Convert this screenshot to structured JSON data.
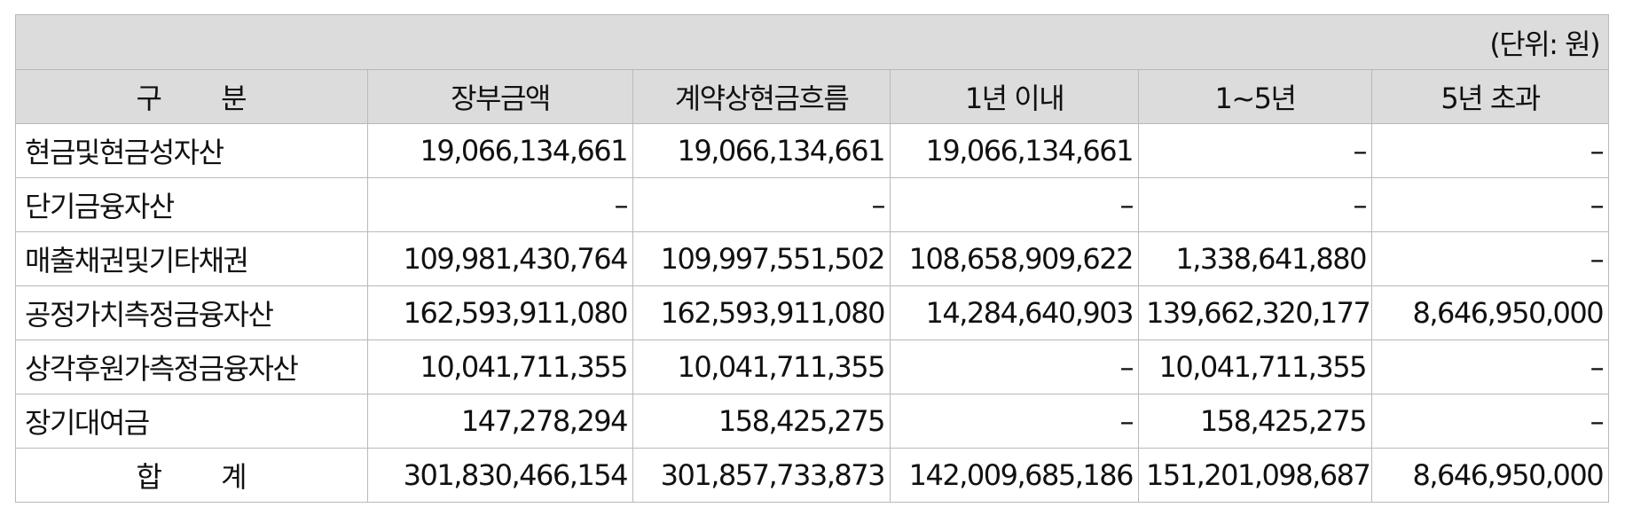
{
  "unit_label": "(단위: 원)",
  "headers": [
    "구 분",
    "장부금액",
    "계약상현금흐름",
    "1년 이내",
    "1~5년",
    "5년 초과"
  ],
  "rows": [
    {
      "label": "현금및현금성자산",
      "values": [
        "19,066,134,661",
        "19,066,134,661",
        "19,066,134,661",
        "–",
        "–"
      ]
    },
    {
      "label": "단기금융자산",
      "values": [
        "–",
        "–",
        "–",
        "–",
        "–"
      ]
    },
    {
      "label": "매출채권및기타채권",
      "values": [
        "109,981,430,764",
        "109,997,551,502",
        "108,658,909,622",
        "1,338,641,880",
        "–"
      ]
    },
    {
      "label": "공정가치측정금융자산",
      "values": [
        "162,593,911,080",
        "162,593,911,080",
        "14,284,640,903",
        "139,662,320,177",
        "8,646,950,000"
      ]
    },
    {
      "label": "상각후원가측정금융자산",
      "values": [
        "10,041,711,355",
        "10,041,711,355",
        "–",
        "10,041,711,355",
        "–"
      ]
    },
    {
      "label": "장기대여금",
      "values": [
        "147,278,294",
        "158,425,275",
        "–",
        "158,425,275",
        "–"
      ]
    }
  ],
  "total": {
    "label": "합 계",
    "values": [
      "301,830,466,154",
      "301,857,733,873",
      "142,009,685,186",
      "151,201,098,687",
      "8,646,950,000"
    ]
  }
}
